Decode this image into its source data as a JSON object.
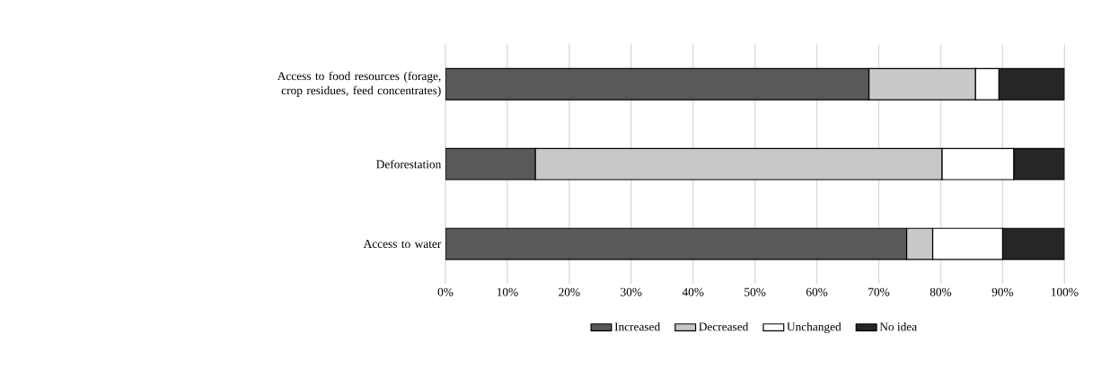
{
  "chart_data": {
    "type": "bar",
    "orientation": "horizontal",
    "stacked": true,
    "categories": [
      "Access to food resources (forage, crop residues, feed concentrates)",
      "Deforestation",
      "Access to water"
    ],
    "series": [
      {
        "name": "Increased",
        "color": "#595959",
        "values": [
          68.4,
          14.5,
          74.5
        ]
      },
      {
        "name": "Decreased",
        "color": "#c8c8c8",
        "values": [
          17.2,
          65.7,
          4.2
        ]
      },
      {
        "name": "Unchanged",
        "color": "#ffffff",
        "values": [
          3.8,
          11.6,
          11.3
        ]
      },
      {
        "name": "No idea",
        "color": "#262626",
        "values": [
          10.6,
          8.2,
          10.0
        ]
      }
    ],
    "xlim": [
      0,
      100
    ],
    "xticks": [
      {
        "value": 0,
        "label": "0%"
      },
      {
        "value": 10,
        "label": "10%"
      },
      {
        "value": 20,
        "label": "20%"
      },
      {
        "value": 30,
        "label": "30%"
      },
      {
        "value": 40,
        "label": "40%"
      },
      {
        "value": 50,
        "label": "50%"
      },
      {
        "value": 60,
        "label": "60%"
      },
      {
        "value": 70,
        "label": "70%"
      },
      {
        "value": 80,
        "label": "80%"
      },
      {
        "value": 90,
        "label": "90%"
      },
      {
        "value": 100,
        "label": "100%"
      }
    ],
    "grid": "x",
    "legend": "bottom"
  }
}
